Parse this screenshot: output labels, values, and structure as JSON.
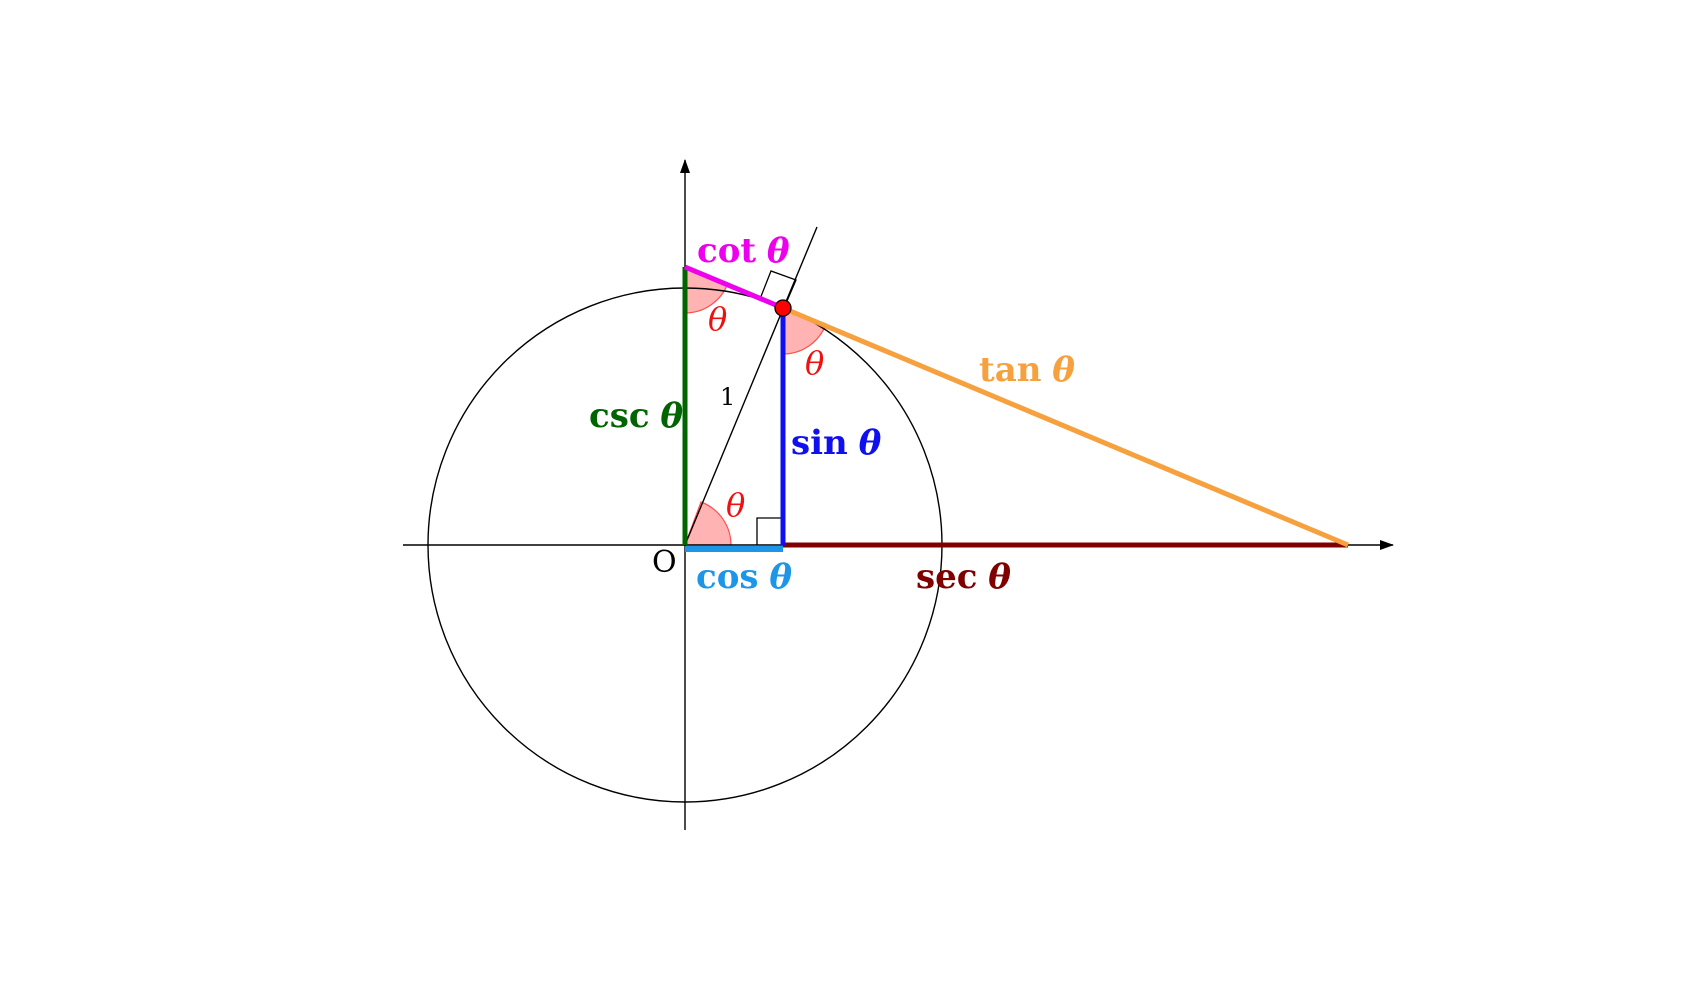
{
  "origin_label": "O",
  "radius_label": "1",
  "theta_symbol": "θ",
  "functions": {
    "sin": {
      "name": "sin",
      "color": "#1010ee"
    },
    "cos": {
      "name": "cos",
      "color": "#1e96e8"
    },
    "tan": {
      "name": "tan",
      "color": "#f7a03e"
    },
    "cot": {
      "name": "cot",
      "color": "#ee00ee"
    },
    "sec": {
      "name": "sec",
      "color": "#800000"
    },
    "csc": {
      "name": "csc",
      "color": "#006400"
    }
  },
  "colors": {
    "axis": "#000000",
    "circle": "#000000",
    "angle_fill": "#ff9a9a",
    "angle_stroke": "#ff5050",
    "theta_label": "#ee1111",
    "point_fill": "#ff0000"
  }
}
